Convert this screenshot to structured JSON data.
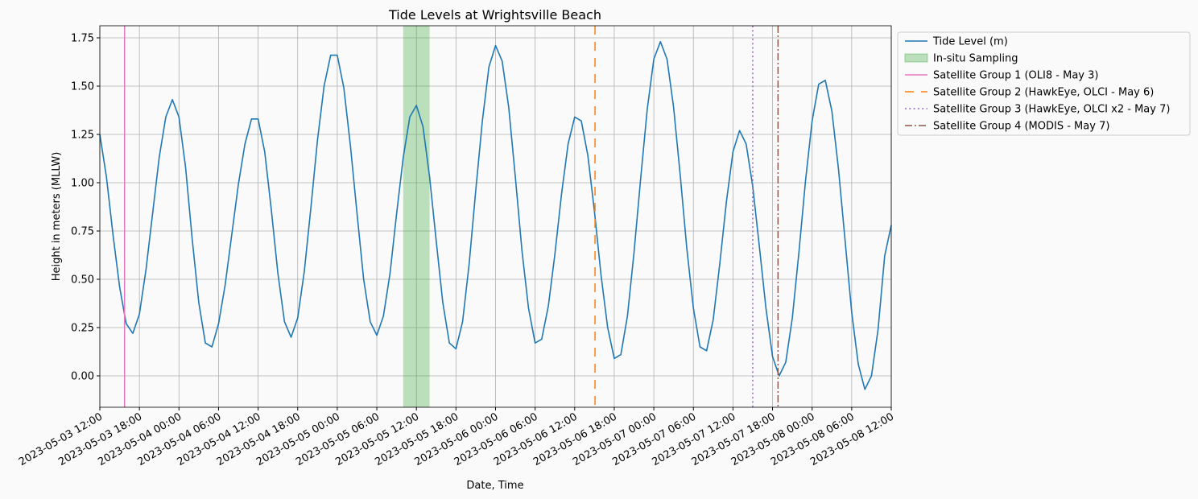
{
  "chart_data": {
    "type": "line",
    "title": "Tide Levels at Wrightsville Beach",
    "x_label": "Date, Time",
    "y_label": "Height in meters (MLLW)",
    "grid": true,
    "legend": "outside upper left",
    "xlim": [
      "2023-05-03 12:00",
      "2023-05-08 12:00"
    ],
    "ylim": [
      -0.1625,
      1.8125
    ],
    "xticks": [
      "2023-05-03 12:00",
      "2023-05-03 18:00",
      "2023-05-04 00:00",
      "2023-05-04 06:00",
      "2023-05-04 12:00",
      "2023-05-04 18:00",
      "2023-05-05 00:00",
      "2023-05-05 06:00",
      "2023-05-05 12:00",
      "2023-05-05 18:00",
      "2023-05-06 00:00",
      "2023-05-06 06:00",
      "2023-05-06 12:00",
      "2023-05-06 18:00",
      "2023-05-07 00:00",
      "2023-05-07 06:00",
      "2023-05-07 12:00",
      "2023-05-07 18:00",
      "2023-05-08 00:00",
      "2023-05-08 06:00",
      "2023-05-08 12:00"
    ],
    "yticks": [
      {
        "value": 0,
        "label": "0.00"
      },
      0.25,
      {
        "value": 0.5,
        "label": "0.50"
      },
      0.75,
      {
        "value": 1,
        "label": "1.00"
      },
      1.25,
      {
        "value": 1.5,
        "label": "1.50"
      },
      1.75
    ],
    "x": [
      "2023-05-03 12:00",
      "2023-05-03 13:00",
      "2023-05-03 14:00",
      "2023-05-03 15:00",
      "2023-05-03 16:00",
      "2023-05-03 17:00",
      "2023-05-03 18:00",
      "2023-05-03 19:00",
      "2023-05-03 20:00",
      "2023-05-03 21:00",
      "2023-05-03 22:00",
      "2023-05-03 23:00",
      "2023-05-04 00:00",
      "2023-05-04 01:00",
      "2023-05-04 02:00",
      "2023-05-04 03:00",
      "2023-05-04 04:00",
      "2023-05-04 05:00",
      "2023-05-04 06:00",
      "2023-05-04 07:00",
      "2023-05-04 08:00",
      "2023-05-04 09:00",
      "2023-05-04 10:00",
      "2023-05-04 11:00",
      "2023-05-04 12:00",
      "2023-05-04 13:00",
      "2023-05-04 14:00",
      "2023-05-04 15:00",
      "2023-05-04 16:00",
      "2023-05-04 17:00",
      "2023-05-04 18:00",
      "2023-05-04 19:00",
      "2023-05-04 20:00",
      "2023-05-04 21:00",
      "2023-05-04 22:00",
      "2023-05-04 23:00",
      "2023-05-05 00:00",
      "2023-05-05 01:00",
      "2023-05-05 02:00",
      "2023-05-05 03:00",
      "2023-05-05 04:00",
      "2023-05-05 05:00",
      "2023-05-05 06:00",
      "2023-05-05 07:00",
      "2023-05-05 08:00",
      "2023-05-05 09:00",
      "2023-05-05 10:00",
      "2023-05-05 11:00",
      "2023-05-05 12:00",
      "2023-05-05 13:00",
      "2023-05-05 14:00",
      "2023-05-05 15:00",
      "2023-05-05 16:00",
      "2023-05-05 17:00",
      "2023-05-05 18:00",
      "2023-05-05 19:00",
      "2023-05-05 20:00",
      "2023-05-05 21:00",
      "2023-05-05 22:00",
      "2023-05-05 23:00",
      "2023-05-06 00:00",
      "2023-05-06 01:00",
      "2023-05-06 02:00",
      "2023-05-06 03:00",
      "2023-05-06 04:00",
      "2023-05-06 05:00",
      "2023-05-06 06:00",
      "2023-05-06 07:00",
      "2023-05-06 08:00",
      "2023-05-06 09:00",
      "2023-05-06 10:00",
      "2023-05-06 11:00",
      "2023-05-06 12:00",
      "2023-05-06 13:00",
      "2023-05-06 14:00",
      "2023-05-06 15:00",
      "2023-05-06 16:00",
      "2023-05-06 17:00",
      "2023-05-06 18:00",
      "2023-05-06 19:00",
      "2023-05-06 20:00",
      "2023-05-06 21:00",
      "2023-05-06 22:00",
      "2023-05-06 23:00",
      "2023-05-07 00:00",
      "2023-05-07 01:00",
      "2023-05-07 02:00",
      "2023-05-07 03:00",
      "2023-05-07 04:00",
      "2023-05-07 05:00",
      "2023-05-07 06:00",
      "2023-05-07 07:00",
      "2023-05-07 08:00",
      "2023-05-07 09:00",
      "2023-05-07 10:00",
      "2023-05-07 11:00",
      "2023-05-07 12:00",
      "2023-05-07 13:00",
      "2023-05-07 14:00",
      "2023-05-07 15:00",
      "2023-05-07 16:00",
      "2023-05-07 17:00",
      "2023-05-07 18:00",
      "2023-05-07 19:00",
      "2023-05-07 20:00",
      "2023-05-07 21:00",
      "2023-05-07 22:00",
      "2023-05-07 23:00",
      "2023-05-08 00:00",
      "2023-05-08 01:00",
      "2023-05-08 02:00",
      "2023-05-08 03:00",
      "2023-05-08 04:00",
      "2023-05-08 05:00",
      "2023-05-08 06:00",
      "2023-05-08 07:00",
      "2023-05-08 08:00",
      "2023-05-08 09:00",
      "2023-05-08 10:00",
      "2023-05-08 11:00",
      "2023-05-08 12:00"
    ],
    "series": [
      {
        "name": "Tide Level (m)",
        "color": "#1f77b4",
        "values": [
          1.25,
          1.03,
          0.73,
          0.46,
          0.27,
          0.22,
          0.32,
          0.55,
          0.84,
          1.13,
          1.34,
          1.43,
          1.34,
          1.08,
          0.71,
          0.38,
          0.17,
          0.15,
          0.27,
          0.47,
          0.73,
          0.99,
          1.2,
          1.33,
          1.33,
          1.16,
          0.86,
          0.53,
          0.28,
          0.2,
          0.3,
          0.54,
          0.87,
          1.22,
          1.5,
          1.66,
          1.66,
          1.49,
          1.19,
          0.84,
          0.5,
          0.28,
          0.21,
          0.31,
          0.53,
          0.84,
          1.13,
          1.34,
          1.4,
          1.29,
          1.03,
          0.7,
          0.38,
          0.17,
          0.14,
          0.28,
          0.58,
          0.96,
          1.32,
          1.6,
          1.71,
          1.63,
          1.39,
          1.03,
          0.65,
          0.35,
          0.17,
          0.19,
          0.36,
          0.63,
          0.94,
          1.2,
          1.34,
          1.32,
          1.14,
          0.85,
          0.52,
          0.25,
          0.09,
          0.11,
          0.31,
          0.64,
          1.02,
          1.38,
          1.64,
          1.73,
          1.64,
          1.39,
          1.04,
          0.66,
          0.35,
          0.15,
          0.13,
          0.29,
          0.58,
          0.9,
          1.16,
          1.27,
          1.2,
          0.98,
          0.67,
          0.35,
          0.1,
          0.0,
          0.07,
          0.3,
          0.64,
          1.01,
          1.32,
          1.51,
          1.53,
          1.37,
          1.07,
          0.7,
          0.33,
          0.06,
          -0.07,
          0.0,
          0.24,
          0.62,
          0.78
        ]
      }
    ],
    "spans": [
      {
        "name": "In-situ Sampling",
        "color": "#2ca02c",
        "x": [
          "2023-05-05 10:00",
          "2023-05-05 14:00"
        ]
      }
    ],
    "vlines": [
      {
        "name": "Satellite Group 1 (OLI8 - May 3)",
        "color": "#e377c2",
        "style": "solid",
        "x": "2023-05-03 15:45"
      },
      {
        "name": "Satellite Group 2 (HawkEye, OLCI - May 6)",
        "color": "#ff7f0e",
        "style": "dashed",
        "x": "2023-05-06 15:05"
      },
      {
        "name": "Satellite Group 3 (HawkEye, OLCI x2 - May 7)",
        "color": "#9467bd",
        "style": "dotted",
        "x": "2023-05-07 15:00"
      },
      {
        "name": "Satellite Group 4 (MODIS - May 7)",
        "color": "#8c564b",
        "style": "dashdot",
        "x": "2023-05-07 18:50"
      }
    ]
  }
}
